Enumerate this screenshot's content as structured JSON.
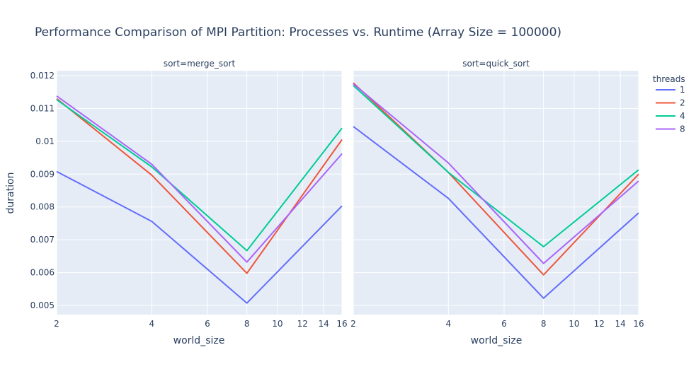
{
  "chart_data": {
    "type": "line",
    "title": "Performance Comparison of MPI Partition: Processes vs. Runtime (Array Size = 100000)",
    "xlabel": "world_size",
    "ylabel": "duration",
    "x_scale": "log",
    "x_ticks": [
      "2",
      "4",
      "6",
      "8",
      "10",
      "12",
      "14",
      "16"
    ],
    "xlim": [
      2,
      16
    ],
    "ylim": [
      0.00472,
      0.01215
    ],
    "y_ticks": [
      "0.005",
      "0.006",
      "0.007",
      "0.008",
      "0.009",
      "0.01",
      "0.011",
      "0.012"
    ],
    "grid": true,
    "legend": {
      "title": "threads",
      "placement": "right",
      "entries": [
        "1",
        "2",
        "4",
        "8"
      ]
    },
    "colors": {
      "1": "#636efa",
      "2": "#EF553B",
      "4": "#00cc96",
      "8": "#ab63fa",
      "plot_bg": "#E5ECF6",
      "text": "#2a3f5f"
    },
    "facets": [
      {
        "label": "sort=merge_sort",
        "x": [
          2,
          4,
          8,
          16
        ],
        "series": [
          {
            "name": "1",
            "values": [
              0.00908,
              0.00756,
              0.00507,
              0.00803
            ]
          },
          {
            "name": "2",
            "values": [
              0.0113,
              0.00897,
              0.00598,
              0.01005
            ]
          },
          {
            "name": "4",
            "values": [
              0.01127,
              0.00922,
              0.00667,
              0.0104
            ]
          },
          {
            "name": "8",
            "values": [
              0.01138,
              0.0093,
              0.00632,
              0.00962
            ]
          }
        ]
      },
      {
        "label": "sort=quick_sort",
        "x": [
          2,
          4,
          8,
          16
        ],
        "series": [
          {
            "name": "1",
            "values": [
              0.01045,
              0.00826,
              0.00522,
              0.00782
            ]
          },
          {
            "name": "2",
            "values": [
              0.01178,
              0.00905,
              0.00593,
              0.009
            ]
          },
          {
            "name": "4",
            "values": [
              0.0117,
              0.00905,
              0.00679,
              0.00913
            ]
          },
          {
            "name": "8",
            "values": [
              0.01175,
              0.00934,
              0.00628,
              0.00879
            ]
          }
        ]
      }
    ]
  }
}
